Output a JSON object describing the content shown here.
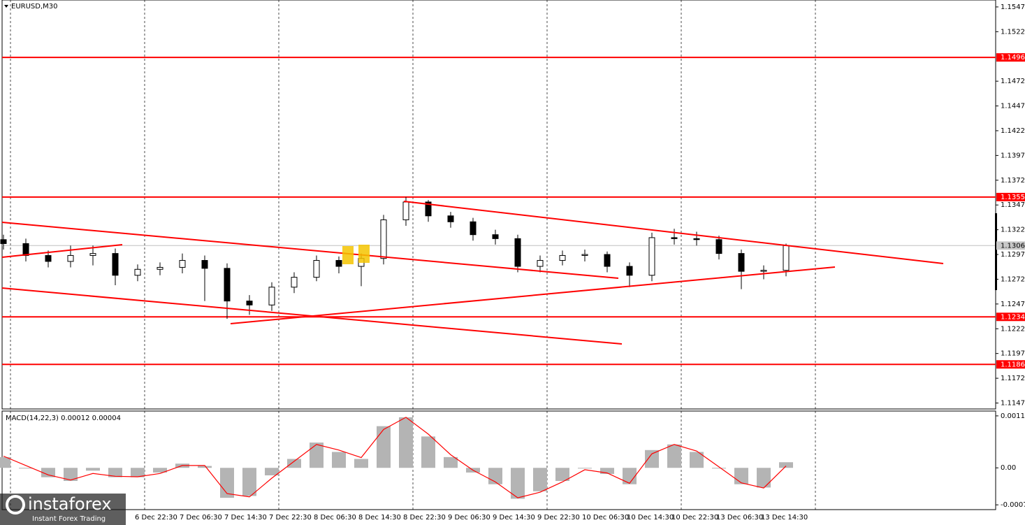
{
  "chart_data": [
    {
      "type": "candlestick",
      "title": "EURUSD,M30",
      "open": [
        1.1312,
        1.1308,
        1.1296,
        1.129,
        1.1296,
        1.1298,
        1.1276,
        1.1282,
        1.1284,
        1.1291,
        1.1283,
        1.125,
        1.1246,
        1.1264,
        1.1274,
        1.1291,
        1.1285,
        1.1293,
        1.1332,
        1.135,
        1.1336,
        1.133,
        1.1317,
        1.1313,
        1.1285,
        1.1291,
        1.1296,
        1.1297,
        1.1285,
        1.1276,
        1.1314,
        1.1313,
        1.1312,
        1.1298,
        1.128,
        1.1281
      ],
      "high": [
        1.1317,
        1.1313,
        1.1301,
        1.1306,
        1.1306,
        1.1303,
        1.1287,
        1.1289,
        1.1298,
        1.1296,
        1.1288,
        1.1256,
        1.1269,
        1.1279,
        1.1296,
        1.1295,
        1.1298,
        1.1337,
        1.1355,
        1.1352,
        1.134,
        1.1334,
        1.1322,
        1.1317,
        1.1296,
        1.1301,
        1.1302,
        1.13,
        1.1289,
        1.1319,
        1.1323,
        1.132,
        1.1316,
        1.1302,
        1.1286,
        1.1308
      ],
      "low": [
        1.1302,
        1.129,
        1.1284,
        1.1284,
        1.1286,
        1.1266,
        1.127,
        1.1276,
        1.1278,
        1.125,
        1.1232,
        1.1236,
        1.124,
        1.1258,
        1.127,
        1.1278,
        1.1265,
        1.1287,
        1.1326,
        1.133,
        1.1324,
        1.1311,
        1.1307,
        1.1279,
        1.1279,
        1.1286,
        1.129,
        1.1279,
        1.1264,
        1.127,
        1.1307,
        1.1306,
        1.1292,
        1.1262,
        1.1272,
        1.1275
      ],
      "close": [
        1.1308,
        1.1296,
        1.129,
        1.1296,
        1.1298,
        1.1276,
        1.1282,
        1.1284,
        1.1291,
        1.1283,
        1.125,
        1.1246,
        1.1264,
        1.1274,
        1.1291,
        1.1285,
        1.1293,
        1.1332,
        1.135,
        1.1336,
        1.133,
        1.1317,
        1.1313,
        1.1285,
        1.1291,
        1.1296,
        1.1297,
        1.1285,
        1.1276,
        1.1314,
        1.1313,
        1.1312,
        1.1298,
        1.128,
        1.1281,
        1.1306
      ],
      "up_color": "#ffffff",
      "down_color": "#000000",
      "ylim": [
        1.1141,
        1.1554
      ],
      "yticks": [
        1.1547,
        1.1522,
        1.1472,
        1.1447,
        1.1422,
        1.1397,
        1.1372,
        1.1347,
        1.1322,
        1.1297,
        1.1272,
        1.1247,
        1.1222,
        1.1197,
        1.1172,
        1.1147
      ],
      "levels": [
        1.1496,
        1.1355,
        1.1234,
        1.1186
      ],
      "level_color": "#ff0000",
      "last_price": 1.1306,
      "xtick_labels": [
        "6 Dec 22:30",
        "7 Dec 06:30",
        "7 Dec 14:30",
        "7 Dec 22:30",
        "8 Dec 06:30",
        "8 Dec 14:30",
        "8 Dec 22:30",
        "9 Dec 06:30",
        "9 Dec 14:30",
        "9 Dec 22:30",
        "10 Dec 06:30",
        "10 Dec 14:30",
        "10 Dec 22:30",
        "13 Dec 06:30",
        "13 Dec 14:30"
      ]
    },
    {
      "type": "macd",
      "title": "MACD(14,22,3) 0.00012 0.00004",
      "histogram": [
        0.00023,
        -1e-05,
        -0.0002,
        -0.00028,
        -6e-05,
        -0.0002,
        -0.0002,
        -0.0001,
        9e-05,
        4e-05,
        -0.00064,
        -0.0006,
        -0.00016,
        0.00019,
        0.00054,
        0.00034,
        0.00019,
        0.00089,
        0.00108,
        0.00067,
        0.00023,
        -0.0001,
        -0.00035,
        -0.00066,
        -0.0005,
        -0.00028,
        -1e-05,
        -0.00013,
        -0.00035,
        0.00038,
        0.0005,
        0.00034,
        -1e-05,
        -0.00035,
        -0.00042,
        0.00012
      ],
      "signal": [
        0.00025,
        5e-05,
        -0.00015,
        -0.00026,
        -0.00012,
        -0.00018,
        -0.00019,
        -0.00012,
        5e-05,
        5e-05,
        -0.00055,
        -0.00062,
        -0.00022,
        0.00014,
        0.0005,
        0.00038,
        0.00022,
        0.00082,
        0.00108,
        0.00072,
        0.00028,
        -5e-05,
        -0.0003,
        -0.00064,
        -0.00052,
        -0.0003,
        -4e-05,
        -0.00011,
        -0.00033,
        0.0003,
        0.0005,
        0.00036,
        2e-05,
        -0.00032,
        -0.00043,
        4e-05
      ],
      "bar_color": "#b4b4b4",
      "line_color": "#ff0000",
      "ylim": [
        -0.000892,
        0.001198
      ],
      "yticks": [
        0.00111,
        {
          "value": 0,
          "label": "0.00"
        },
        -0.00079
      ]
    }
  ],
  "watermark": {
    "brand": "instaforex",
    "tagline": "Instant Forex Trading"
  }
}
